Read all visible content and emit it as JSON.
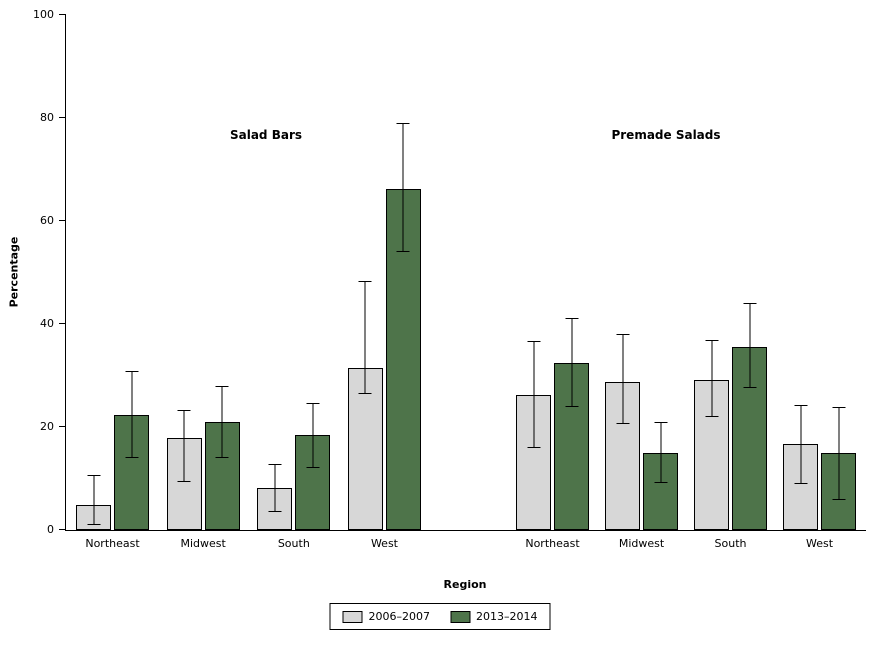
{
  "chart_data": {
    "type": "bar",
    "title": "",
    "ylabel": "Percentage",
    "xlabel": "Region",
    "ylim": [
      0,
      100
    ],
    "yticks": [
      0,
      20,
      40,
      60,
      80,
      100
    ],
    "grid": false,
    "legend_position": "bottom",
    "error_bars": true,
    "panels": [
      {
        "label": "Salad Bars",
        "categories": [
          "Northeast",
          "Midwest",
          "South",
          "West"
        ],
        "series": [
          {
            "name": "2006–2007",
            "color": "#d7d7d7",
            "values": [
              4.8,
              17.8,
              8.2,
              31.5
            ],
            "ci_low": [
              1.0,
              9.4,
              3.5,
              26.4
            ],
            "ci_high": [
              10.6,
              23.3,
              12.8,
              48.4
            ]
          },
          {
            "name": "2013–2014",
            "color": "#4e744a",
            "values": [
              22.3,
              21.0,
              18.5,
              66.2
            ],
            "ci_low": [
              13.9,
              13.9,
              12.1,
              53.9
            ],
            "ci_high": [
              30.9,
              27.9,
              24.6,
              79.1
            ]
          }
        ]
      },
      {
        "label": "Premade Salads",
        "categories": [
          "Northeast",
          "Midwest",
          "South",
          "West"
        ],
        "series": [
          {
            "name": "2006–2007",
            "color": "#d7d7d7",
            "values": [
              26.2,
              28.8,
              29.1,
              16.7
            ],
            "ci_low": [
              15.9,
              20.6,
              21.9,
              8.9
            ],
            "ci_high": [
              36.7,
              38.0,
              36.9,
              24.3
            ]
          },
          {
            "name": "2013–2014",
            "color": "#4e744a",
            "values": [
              32.4,
              15.0,
              35.5,
              14.9
            ],
            "ci_low": [
              23.9,
              9.1,
              27.6,
              5.8
            ],
            "ci_high": [
              41.2,
              20.9,
              44.0,
              23.9
            ]
          }
        ]
      }
    ],
    "legend": [
      {
        "label": "2006–2007",
        "color": "#d7d7d7"
      },
      {
        "label": "2013–2014",
        "color": "#4e744a"
      }
    ]
  }
}
